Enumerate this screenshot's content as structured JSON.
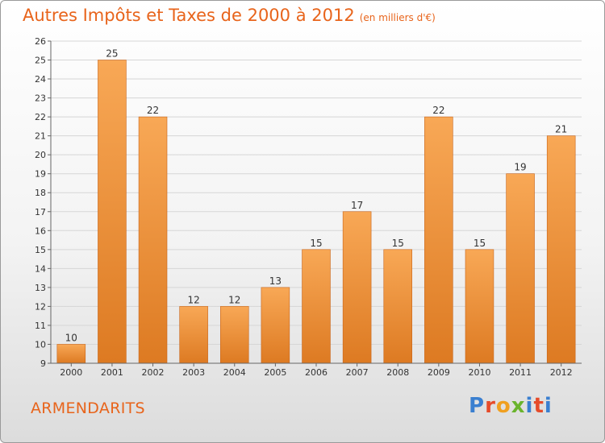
{
  "header": {
    "title": "Autres Impôts et Taxes de 2000 à 2012",
    "unit": "(en milliers d'€)"
  },
  "footer": {
    "commune": "ARMENDARITS",
    "logo": "Proxiti"
  },
  "colors": {
    "accent": "#e8641b",
    "bar_light": "#f8a856",
    "bar_dark": "#dd7a22"
  },
  "chart_data": {
    "type": "bar",
    "title": "Autres Impôts et Taxes de 2000 à 2012",
    "subtitle": "(en milliers d'€)",
    "categories": [
      "2000",
      "2001",
      "2002",
      "2003",
      "2004",
      "2005",
      "2006",
      "2007",
      "2008",
      "2009",
      "2010",
      "2011",
      "2012"
    ],
    "values": [
      10,
      25,
      22,
      12,
      12,
      13,
      15,
      17,
      15,
      22,
      15,
      19,
      21
    ],
    "ylim": [
      9,
      26
    ],
    "yticks": [
      9,
      10,
      11,
      12,
      13,
      14,
      15,
      16,
      17,
      18,
      19,
      20,
      21,
      22,
      23,
      24,
      25,
      26
    ],
    "grid": true,
    "xlabel": "",
    "ylabel": ""
  }
}
